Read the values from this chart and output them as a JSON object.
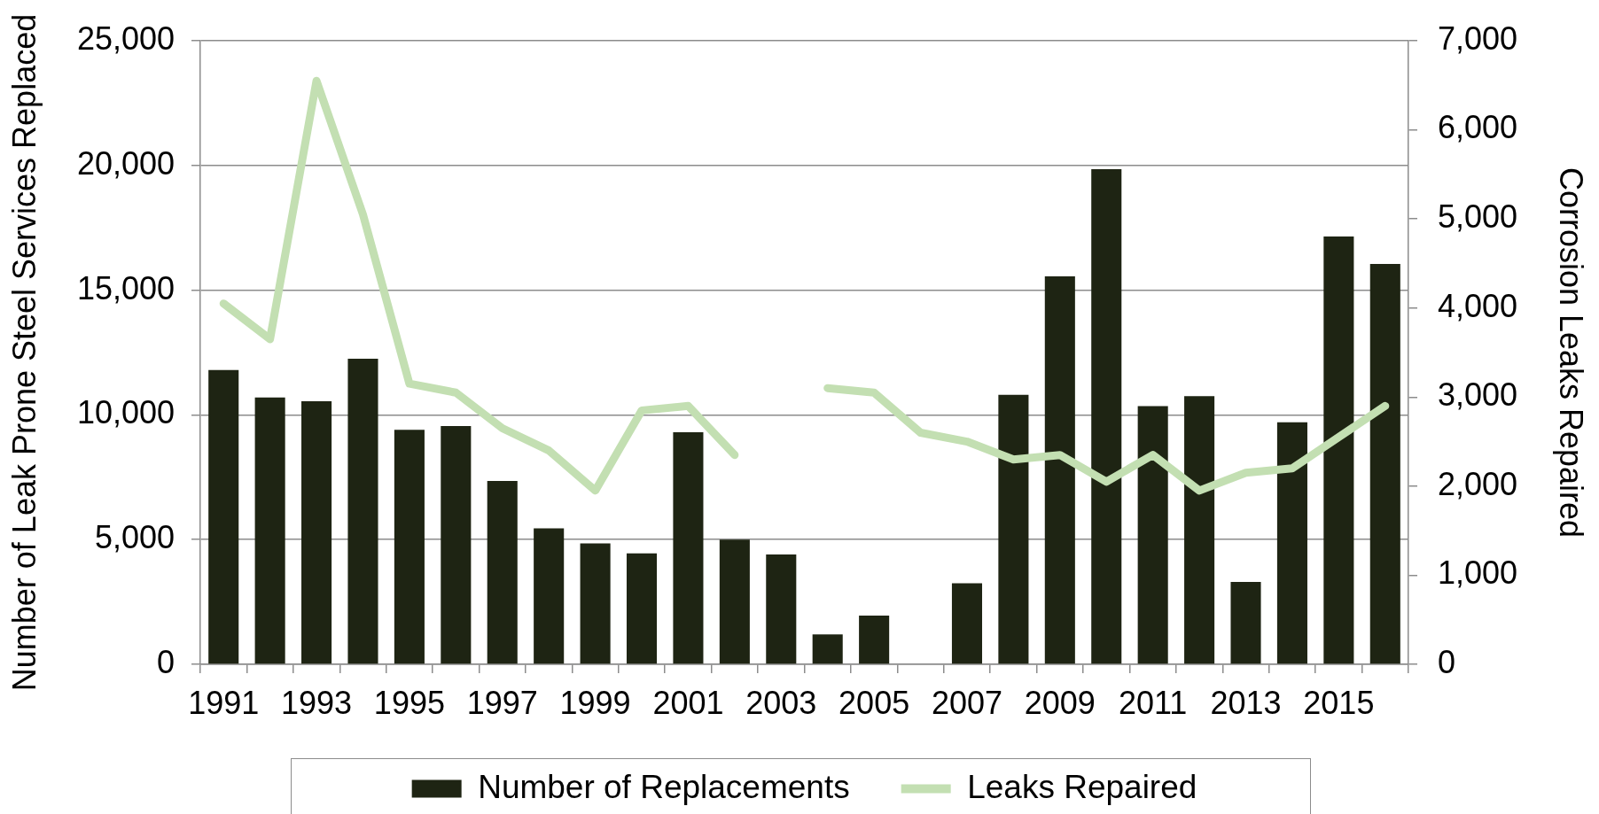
{
  "chart_data": {
    "type": "bar",
    "categories": [
      "1991",
      null,
      "1993",
      null,
      "1995",
      null,
      "1997",
      null,
      "1999",
      null,
      "2001",
      null,
      "2003",
      null,
      "2005",
      null,
      "2007",
      null,
      "2009",
      null,
      "2011",
      null,
      "2013",
      null,
      "2015",
      null
    ],
    "series": [
      {
        "name": "Number of Replacements",
        "color": "#1e2413",
        "values": [
          11800,
          10700,
          10550,
          12250,
          9400,
          9550,
          7350,
          5450,
          4850,
          4450,
          9300,
          5000,
          4400,
          1200,
          1950,
          null,
          3250,
          10800,
          15550,
          19850,
          10350,
          10750,
          3300,
          9700,
          17150,
          16050
        ]
      },
      {
        "name": "Leaks Repaired",
        "type": "line",
        "axis": "y2",
        "color": "#c3dfb2",
        "values": [
          4050,
          3650,
          6550,
          5050,
          3150,
          3050,
          2650,
          2400,
          1950,
          2850,
          2900,
          2350,
          null,
          3100,
          3050,
          2600,
          2500,
          2300,
          2350,
          2050,
          2350,
          1950,
          2150,
          2200,
          2550,
          2900
        ]
      }
    ],
    "ylabel": "Number of Leak Prone Steel Services Replaced",
    "y2label": "Corrosion Leaks Repaired",
    "ylim": [
      0,
      25000
    ],
    "yticks": [
      0,
      {
        "value": 5000,
        "label": "5,000"
      },
      {
        "value": 10000,
        "label": "10,000"
      },
      {
        "value": 15000,
        "label": "15,000"
      },
      {
        "value": 20000,
        "label": "20,000"
      },
      {
        "value": 25000,
        "label": "25,000"
      }
    ],
    "y2lim": [
      0,
      7000
    ],
    "y2ticks": [
      0,
      {
        "value": 1000,
        "label": "1,000"
      },
      {
        "value": 2000,
        "label": "2,000"
      },
      {
        "value": 3000,
        "label": "3,000"
      },
      {
        "value": 4000,
        "label": "4,000"
      },
      {
        "value": 5000,
        "label": "5,000"
      },
      {
        "value": 6000,
        "label": "6,000"
      },
      {
        "value": 7000,
        "label": "7,000"
      }
    ],
    "grid": "y",
    "legend": "bottom",
    "marker": "none"
  }
}
